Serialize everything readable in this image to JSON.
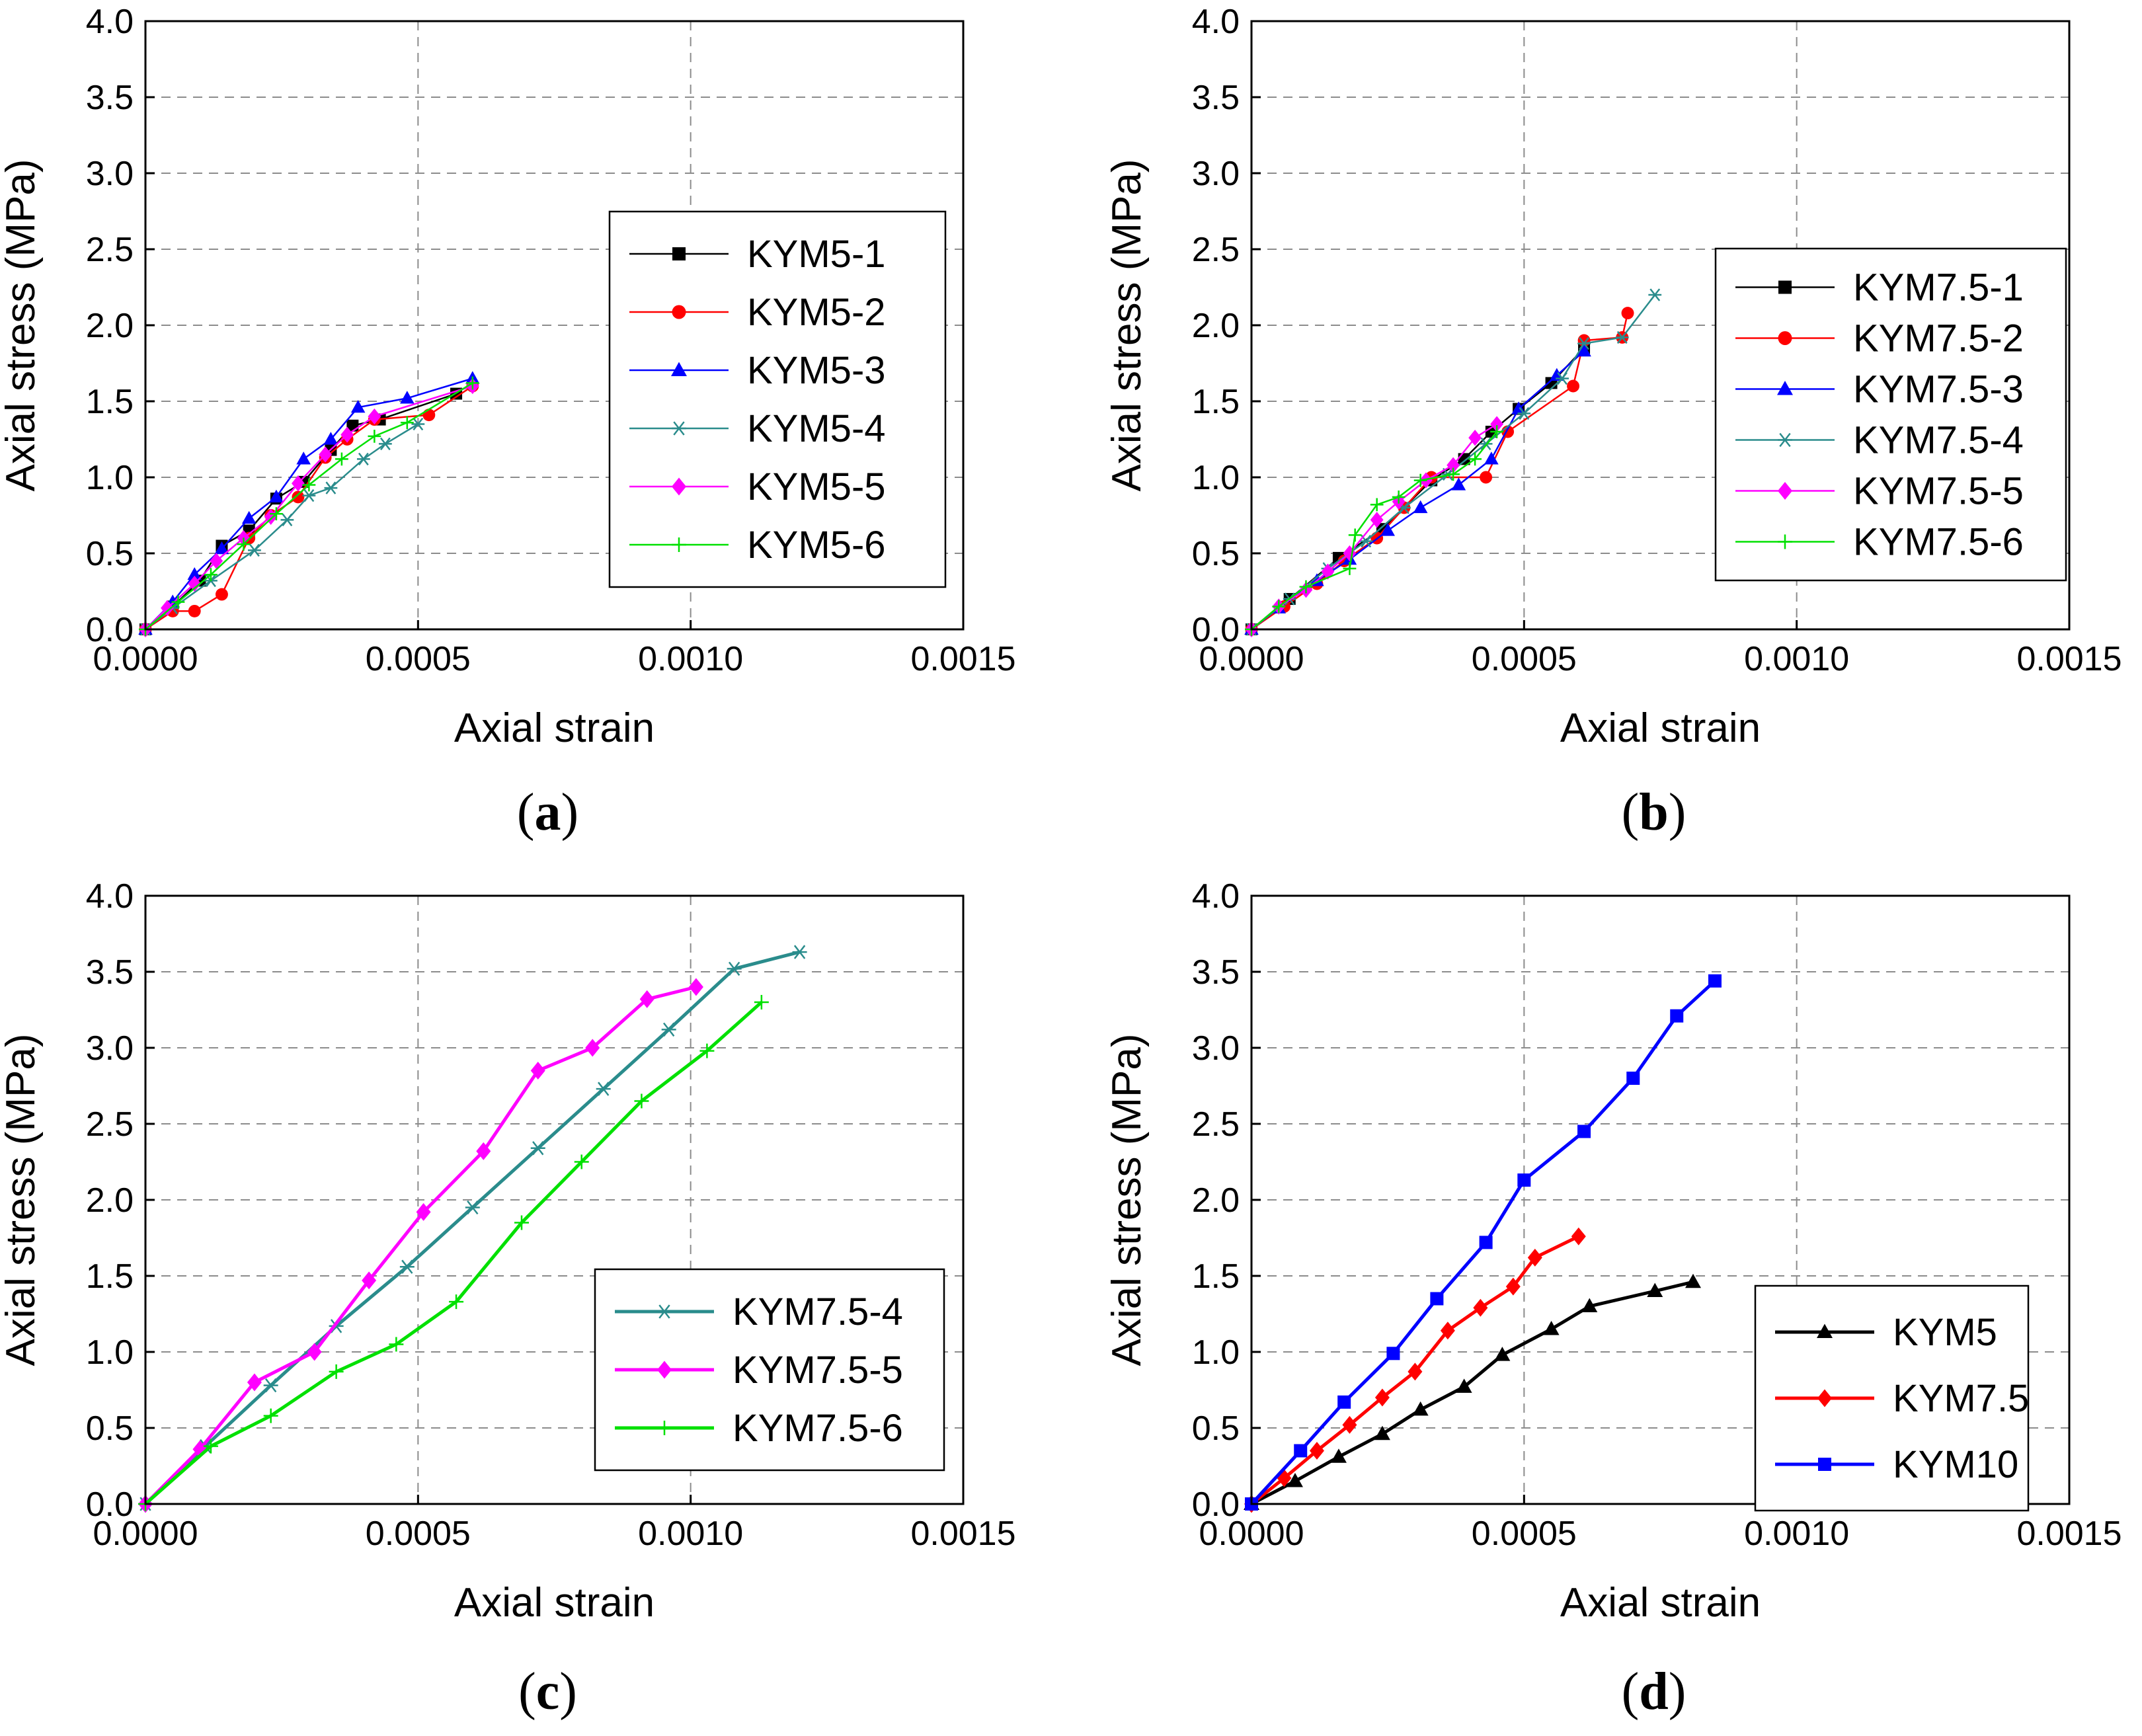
{
  "chart_data": [
    {
      "type": "line",
      "panel_label": "a",
      "xlabel": "Axial strain",
      "ylabel": "Axial stress (MPa)",
      "xlim": [
        0,
        0.0015
      ],
      "ylim": [
        0,
        4.0
      ],
      "x_ticks": [
        "0.0000",
        "0.0005",
        "0.0010",
        "0.0015"
      ],
      "y_ticks": [
        "0.0",
        "0.5",
        "1.0",
        "1.5",
        "2.0",
        "2.5",
        "3.0",
        "3.5",
        "4.0"
      ],
      "grid": true,
      "legend_position": "right-middle",
      "series": [
        {
          "name": "KYM5-1",
          "color": "#000000",
          "marker": "square",
          "x": [
            0,
            5e-05,
            0.0001,
            0.00014,
            0.00019,
            0.00024,
            0.00029,
            0.00034,
            0.00038,
            0.00043,
            0.00057
          ],
          "y": [
            0,
            0.15,
            0.32,
            0.55,
            0.65,
            0.86,
            0.97,
            1.18,
            1.34,
            1.38,
            1.55
          ]
        },
        {
          "name": "KYM5-2",
          "color": "#ff0000",
          "marker": "circle",
          "x": [
            0,
            5e-05,
            9e-05,
            0.00014,
            0.00019,
            0.00023,
            0.00028,
            0.00033,
            0.00037,
            0.00042,
            0.00052,
            0.0006
          ],
          "y": [
            0,
            0.12,
            0.12,
            0.23,
            0.6,
            0.75,
            0.87,
            1.13,
            1.25,
            1.38,
            1.41,
            1.6
          ]
        },
        {
          "name": "KYM5-3",
          "color": "#0000ff",
          "marker": "triangle",
          "x": [
            0,
            5e-05,
            9e-05,
            0.00014,
            0.00019,
            0.00024,
            0.00029,
            0.00034,
            0.00039,
            0.00048,
            0.0006
          ],
          "y": [
            0,
            0.18,
            0.36,
            0.53,
            0.73,
            0.87,
            1.12,
            1.25,
            1.46,
            1.52,
            1.65
          ]
        },
        {
          "name": "KYM5-4",
          "color": "#2a8c8c",
          "marker": "star",
          "x": [
            0,
            5e-05,
            0.00012,
            0.0002,
            0.00026,
            0.0003,
            0.00034,
            0.0004,
            0.00044,
            0.0005
          ],
          "y": [
            0,
            0.14,
            0.32,
            0.52,
            0.72,
            0.88,
            0.93,
            1.12,
            1.22,
            1.35
          ]
        },
        {
          "name": "KYM5-5",
          "color": "#ff00ff",
          "marker": "diamond",
          "x": [
            0,
            4e-05,
            9e-05,
            0.00013,
            0.00018,
            0.00023,
            0.00028,
            0.00033,
            0.00037,
            0.00042,
            0.0006
          ],
          "y": [
            0,
            0.14,
            0.3,
            0.45,
            0.6,
            0.74,
            0.96,
            1.15,
            1.28,
            1.4,
            1.6
          ]
        },
        {
          "name": "KYM5-6",
          "color": "#00e000",
          "marker": "plus",
          "x": [
            0,
            6e-05,
            0.00012,
            0.00018,
            0.00024,
            0.0003,
            0.00036,
            0.00042,
            0.00048,
            0.0006
          ],
          "y": [
            0,
            0.18,
            0.36,
            0.56,
            0.76,
            0.95,
            1.12,
            1.27,
            1.36,
            1.62
          ]
        }
      ]
    },
    {
      "type": "line",
      "panel_label": "b",
      "xlabel": "Axial strain",
      "ylabel": "Axial stress (MPa)",
      "xlim": [
        0,
        0.0015
      ],
      "ylim": [
        0,
        4.0
      ],
      "x_ticks": [
        "0.0000",
        "0.0005",
        "0.0010",
        "0.0015"
      ],
      "y_ticks": [
        "0.0",
        "0.5",
        "1.0",
        "1.5",
        "2.0",
        "2.5",
        "3.0",
        "3.5",
        "4.0"
      ],
      "grid": true,
      "legend_position": "right-middle",
      "series": [
        {
          "name": "KYM7.5-1",
          "color": "#000000",
          "marker": "square",
          "x": [
            0,
            7e-05,
            0.00016,
            0.00024,
            0.00033,
            0.00039,
            0.00044,
            0.00049,
            0.00055,
            0.00061
          ],
          "y": [
            0,
            0.2,
            0.47,
            0.66,
            0.98,
            1.12,
            1.3,
            1.45,
            1.62,
            1.85
          ]
        },
        {
          "name": "KYM7.5-2",
          "color": "#ff0000",
          "marker": "circle",
          "x": [
            0,
            6e-05,
            0.00012,
            0.00017,
            0.00023,
            0.00028,
            0.00033,
            0.00043,
            0.00047,
            0.00059,
            0.00061,
            0.00068,
            0.00069
          ],
          "y": [
            0,
            0.15,
            0.3,
            0.45,
            0.6,
            0.8,
            1.0,
            1.0,
            1.3,
            1.6,
            1.9,
            1.92,
            2.08
          ]
        },
        {
          "name": "KYM7.5-3",
          "color": "#0000ff",
          "marker": "triangle",
          "x": [
            0,
            5e-05,
            0.00012,
            0.00018,
            0.00025,
            0.00031,
            0.00038,
            0.00044,
            0.00049,
            0.00056,
            0.00061
          ],
          "y": [
            0,
            0.14,
            0.32,
            0.46,
            0.65,
            0.8,
            0.95,
            1.12,
            1.45,
            1.67,
            1.83
          ]
        },
        {
          "name": "KYM7.5-4",
          "color": "#2a8c8c",
          "marker": "star",
          "x": [
            0,
            7e-05,
            0.00014,
            0.00021,
            0.00028,
            0.00036,
            0.00043,
            0.0005,
            0.00057,
            0.00061,
            0.00068,
            0.00074
          ],
          "y": [
            0,
            0.2,
            0.4,
            0.58,
            0.8,
            1.02,
            1.22,
            1.42,
            1.65,
            1.88,
            1.92,
            2.2
          ]
        },
        {
          "name": "KYM7.5-5",
          "color": "#ff00ff",
          "marker": "diamond",
          "x": [
            0,
            5e-05,
            0.0001,
            0.00014,
            0.00018,
            0.00023,
            0.00027,
            0.00032,
            0.00037,
            0.00041,
            0.00045
          ],
          "y": [
            0,
            0.15,
            0.26,
            0.38,
            0.5,
            0.72,
            0.84,
            0.98,
            1.08,
            1.26,
            1.35
          ]
        },
        {
          "name": "KYM7.5-6",
          "color": "#00e000",
          "marker": "plus",
          "x": [
            0,
            5e-05,
            0.0001,
            0.00018,
            0.00019,
            0.00023,
            0.00027,
            0.00031,
            0.00037,
            0.00041,
            0.00045
          ],
          "y": [
            0,
            0.15,
            0.28,
            0.4,
            0.62,
            0.82,
            0.87,
            0.98,
            1.02,
            1.12,
            1.3
          ]
        }
      ]
    },
    {
      "type": "line",
      "panel_label": "c",
      "xlabel": "Axial strain",
      "ylabel": "Axial stress (MPa)",
      "xlim": [
        0,
        0.0015
      ],
      "ylim": [
        0,
        4.0
      ],
      "x_ticks": [
        "0.0000",
        "0.0005",
        "0.0010",
        "0.0015"
      ],
      "y_ticks": [
        "0.0",
        "0.5",
        "1.0",
        "1.5",
        "2.0",
        "2.5",
        "3.0",
        "3.5",
        "4.0"
      ],
      "grid": true,
      "legend_position": "bottom-right",
      "series": [
        {
          "name": "KYM7.5-4",
          "color": "#2a8c8c",
          "marker": "star",
          "x": [
            0,
            0.00011,
            0.00023,
            0.00035,
            0.00048,
            0.0006,
            0.00072,
            0.00084,
            0.00096,
            0.00108,
            0.0012
          ],
          "y": [
            0,
            0.38,
            0.78,
            1.17,
            1.56,
            1.95,
            2.34,
            2.73,
            3.12,
            3.52,
            3.63
          ]
        },
        {
          "name": "KYM7.5-5",
          "color": "#ff00ff",
          "marker": "diamond",
          "x": [
            0,
            0.0001,
            0.0002,
            0.00031,
            0.00041,
            0.00051,
            0.00062,
            0.00072,
            0.00082,
            0.00092,
            0.00101
          ],
          "y": [
            0,
            0.36,
            0.8,
            1.0,
            1.47,
            1.92,
            2.32,
            2.85,
            3.0,
            3.32,
            3.4
          ]
        },
        {
          "name": "KYM7.5-6",
          "color": "#00e000",
          "marker": "plus",
          "x": [
            0,
            0.00012,
            0.00023,
            0.00035,
            0.00046,
            0.00057,
            0.00069,
            0.0008,
            0.00091,
            0.00103,
            0.00113
          ],
          "y": [
            0,
            0.38,
            0.58,
            0.87,
            1.05,
            1.33,
            1.85,
            2.25,
            2.65,
            2.98,
            3.3
          ]
        }
      ]
    },
    {
      "type": "line",
      "panel_label": "d",
      "xlabel": "Axial strain",
      "ylabel": "Axial stress (MPa)",
      "xlim": [
        0,
        0.0015
      ],
      "ylim": [
        0,
        4.0
      ],
      "x_ticks": [
        "0.0000",
        "0.0005",
        "0.0010",
        "0.0015"
      ],
      "y_ticks": [
        "0.0",
        "0.5",
        "1.0",
        "1.5",
        "2.0",
        "2.5",
        "3.0",
        "3.5",
        "4.0"
      ],
      "grid": true,
      "legend_position": "bottom-right",
      "series": [
        {
          "name": "KYM5",
          "color": "#000000",
          "marker": "triangle",
          "x": [
            0,
            8e-05,
            0.00016,
            0.00024,
            0.00031,
            0.00039,
            0.00046,
            0.00055,
            0.00062,
            0.00074,
            0.00081
          ],
          "y": [
            0,
            0.15,
            0.31,
            0.46,
            0.62,
            0.77,
            0.98,
            1.15,
            1.3,
            1.4,
            1.46
          ]
        },
        {
          "name": "KYM7.5",
          "color": "#ff0000",
          "marker": "diamond",
          "x": [
            0,
            6e-05,
            0.00012,
            0.00018,
            0.00024,
            0.0003,
            0.00036,
            0.00042,
            0.00048,
            0.00052,
            0.0006
          ],
          "y": [
            0,
            0.17,
            0.35,
            0.52,
            0.7,
            0.87,
            1.14,
            1.29,
            1.43,
            1.62,
            1.76
          ]
        },
        {
          "name": "KYM10",
          "color": "#0000ff",
          "marker": "square",
          "x": [
            0,
            9e-05,
            0.00017,
            0.00026,
            0.00034,
            0.00043,
            0.0005,
            0.00061,
            0.0007,
            0.00078,
            0.00085
          ],
          "y": [
            0,
            0.35,
            0.67,
            0.99,
            1.35,
            1.72,
            2.13,
            2.45,
            2.8,
            3.21,
            3.44
          ]
        }
      ]
    }
  ]
}
